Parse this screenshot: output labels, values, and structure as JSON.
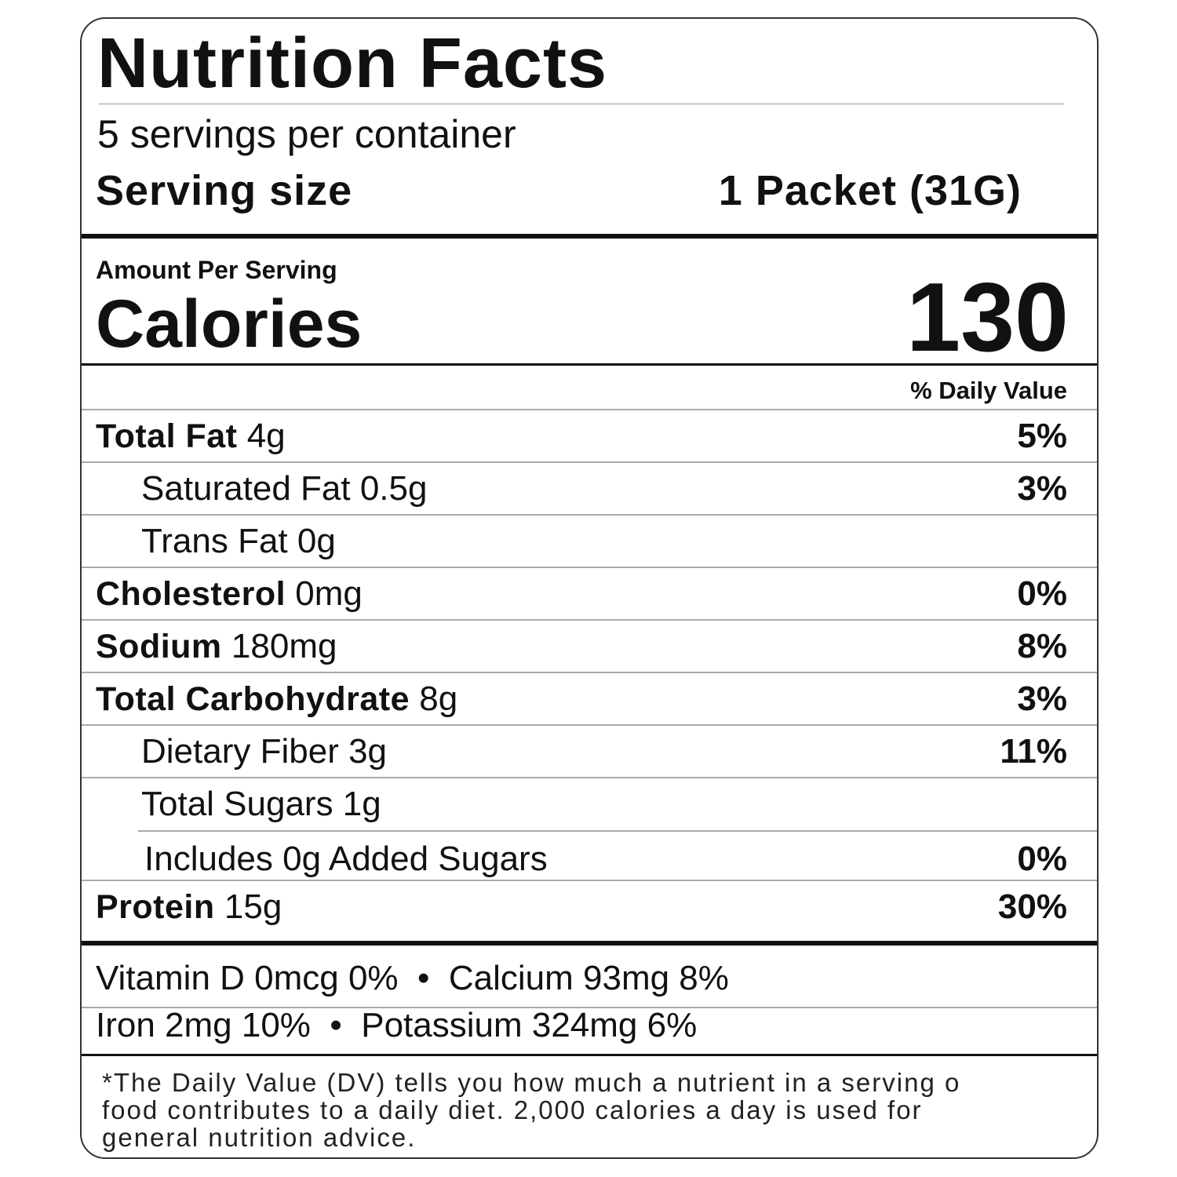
{
  "title": "Nutrition Facts",
  "servings_per_container": "5 servings per container",
  "serving_size": {
    "label": "Serving size",
    "value": "1 Packet (31G)"
  },
  "amount_per_serving": "Amount Per Serving",
  "calories": {
    "label": "Calories",
    "value": "130"
  },
  "daily_value_header": "% Daily Value",
  "nutrients": [
    {
      "name": "Total Fat",
      "amount": "4g",
      "dv": "5%"
    },
    {
      "name": "Saturated Fat 0.5g",
      "dv": "3%"
    },
    {
      "name": "Trans Fat 0g",
      "dv": ""
    },
    {
      "name": "Cholesterol",
      "amount": "0mg",
      "dv": "0%"
    },
    {
      "name": "Sodium",
      "amount": "180mg",
      "dv": "8%"
    },
    {
      "name": "Total Carbohydrate",
      "amount": "8g",
      "dv": "3%"
    },
    {
      "name": "Dietary Fiber 3g",
      "dv": "11%"
    },
    {
      "name": "Total Sugars 1g",
      "dv": ""
    },
    {
      "name": "Includes 0g Added Sugars",
      "dv": "0%"
    },
    {
      "name": "Protein",
      "amount": "15g",
      "dv": "30%"
    }
  ],
  "vitamins": [
    "Vitamin D 0mcg 0%  •  Calcium 93mg 8%",
    "Iron 2mg 10%  •  Potassium 324mg 6%"
  ],
  "footnote": [
    "*The Daily Value (DV) tells you how much a nutrient in a serving o",
    "food contributes to a daily diet. 2,000 calories a day is used for",
    "general nutrition advice."
  ]
}
